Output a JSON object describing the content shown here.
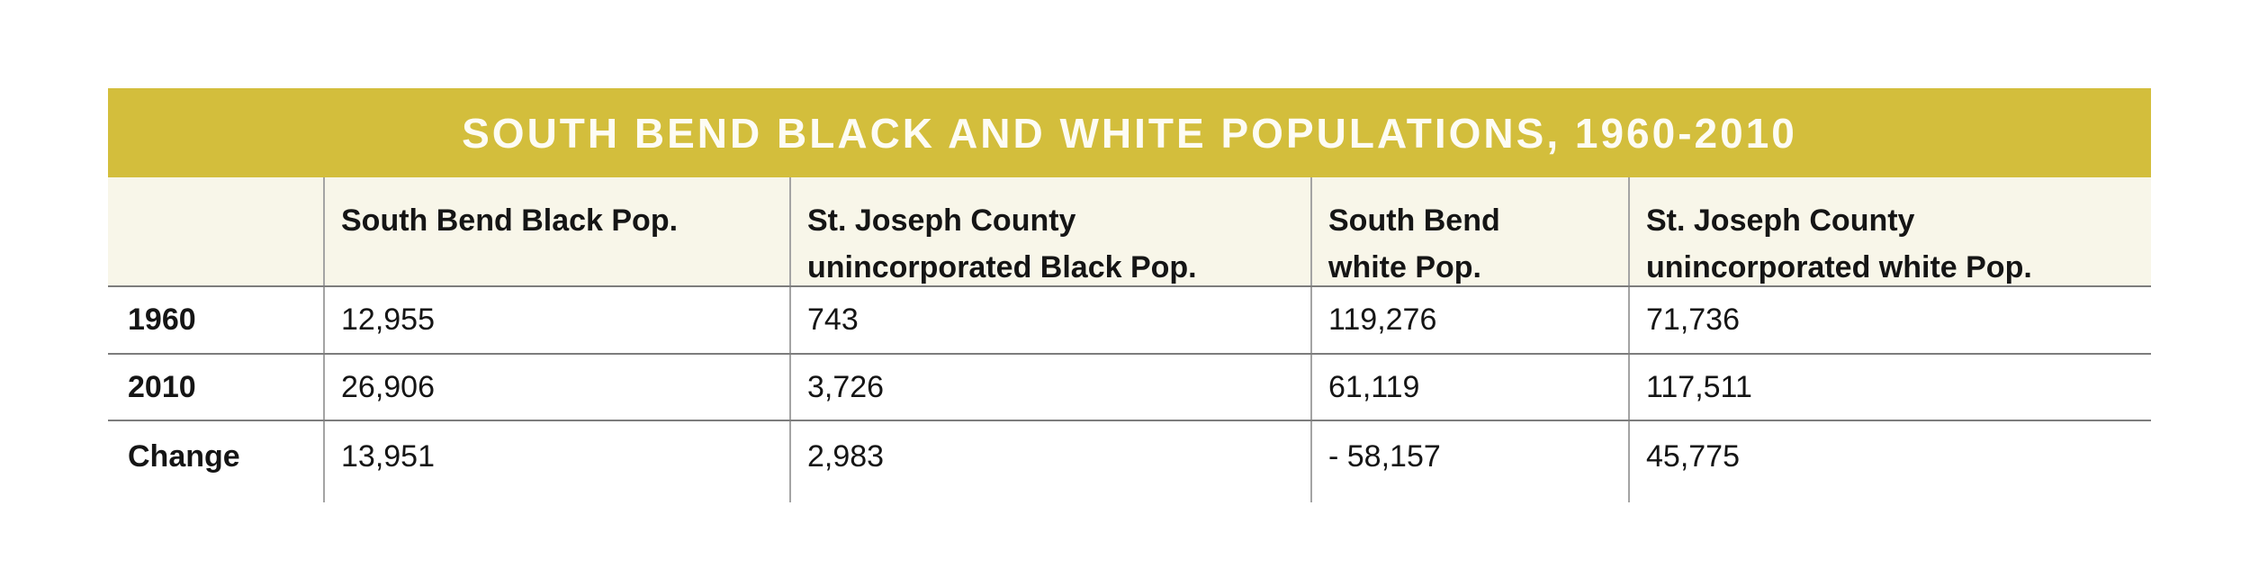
{
  "page": {
    "background": "#ffffff"
  },
  "colors": {
    "title_bar_bg": "#d3be3c",
    "title_text": "#fdfcf4",
    "header_row_bg": "#f8f6e9",
    "row_bg": "#ffffff",
    "horizontal_rule": "#7d7d7d",
    "vertical_rule": "#a4a4a4",
    "body_text": "#151515"
  },
  "chart_data": {
    "type": "table",
    "title": "SOUTH BEND BLACK AND WHITE POPULATIONS, 1960-2010",
    "columns": [
      "",
      "South Bend Black Pop.",
      "St. Joseph County\nunincorporated Black Pop.",
      "South Bend\nwhite Pop.",
      "St. Joseph County\nunincorporated white Pop."
    ],
    "rows": [
      {
        "label": "1960",
        "values": [
          "12,955",
          "743",
          "119,276",
          "71,736"
        ]
      },
      {
        "label": "2010",
        "values": [
          "26,906",
          "3,726",
          "61,119",
          "117,511"
        ]
      },
      {
        "label": "Change",
        "values": [
          "13,951",
          "2,983",
          "- 58,157",
          "45,775"
        ]
      }
    ]
  }
}
